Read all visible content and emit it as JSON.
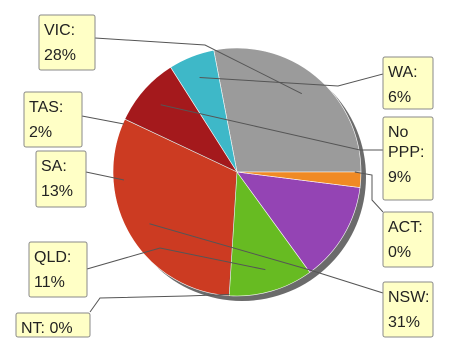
{
  "chart_data": {
    "type": "pie",
    "title": "",
    "slices": [
      {
        "label": "VIC",
        "value": 28,
        "text": "28%",
        "color": "#9b9b9b"
      },
      {
        "label": "WA",
        "value": 6,
        "text": "6%",
        "color": "#3eb8c8"
      },
      {
        "label": "No PPP",
        "value": 9,
        "text": "9%",
        "color": "#a4191c"
      },
      {
        "label": "ACT",
        "value": 0,
        "text": "0%",
        "color": "#b8b8b8"
      },
      {
        "label": "NSW",
        "value": 31,
        "text": "31%",
        "color": "#cc3b22"
      },
      {
        "label": "NT",
        "value": 0,
        "text": "0%",
        "color": "#bbbbbb"
      },
      {
        "label": "QLD",
        "value": 11,
        "text": "11%",
        "color": "#67bb22"
      },
      {
        "label": "SA",
        "value": 13,
        "text": "13%",
        "color": "#9444b4"
      },
      {
        "label": "TAS",
        "value": 2,
        "text": "2%",
        "color": "#f08a24"
      }
    ],
    "callout_fill": "#ffffc6",
    "shadow_color": "#6b6b6b"
  }
}
